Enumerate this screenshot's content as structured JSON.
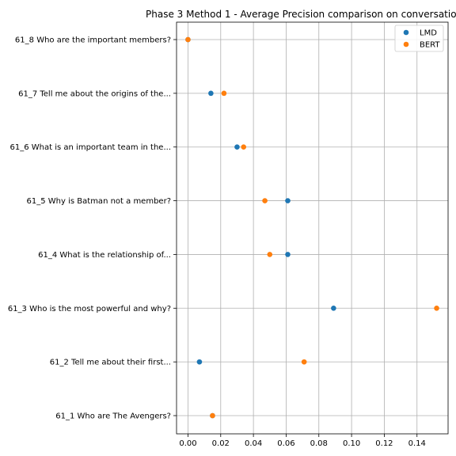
{
  "chart_data": {
    "type": "scatter",
    "title": "Phase 3 Method 1 - Average Precision comparison on conversation",
    "xlabel": "",
    "ylabel": "",
    "xlim": [
      -0.007,
      0.159
    ],
    "xticks": [
      0.0,
      0.02,
      0.04,
      0.06,
      0.08,
      0.1,
      0.12,
      0.14
    ],
    "xtick_labels": [
      "0.00",
      "0.02",
      "0.04",
      "0.06",
      "0.08",
      "0.10",
      "0.12",
      "0.14"
    ],
    "categories": [
      "61_1 Who are The Avengers?",
      "61_2 Tell me about their first...",
      "61_3 Who is the most powerful and why?",
      "61_4 What is the relationship of...",
      "61_5 Why is Batman not a member?",
      "61_6 What is an important team in the...",
      "61_7 Tell me about the origins of the...",
      "61_8 Who are the important members?"
    ],
    "series": [
      {
        "name": "LMD",
        "color": "#1f77b4",
        "values": [
          0.015,
          0.007,
          0.089,
          0.061,
          0.061,
          0.03,
          0.014,
          0.0
        ]
      },
      {
        "name": "BERT",
        "color": "#ff7f0e",
        "values": [
          0.015,
          0.071,
          0.152,
          0.05,
          0.047,
          0.034,
          0.022,
          0.0
        ]
      }
    ],
    "grid": true,
    "legend_position": "top-right"
  }
}
